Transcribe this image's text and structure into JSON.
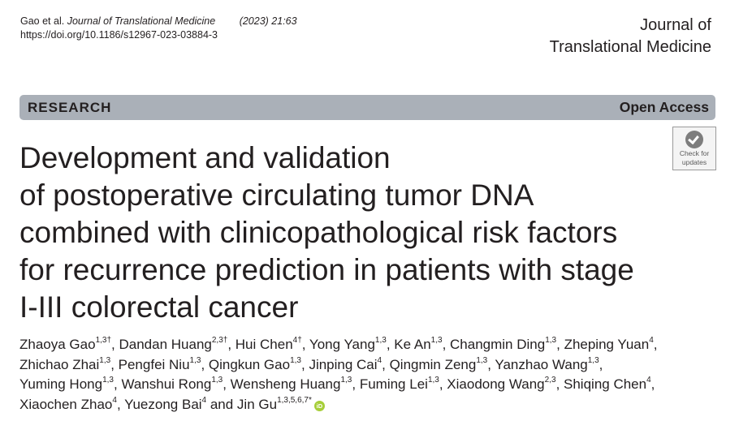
{
  "citation": {
    "authors": "Gao et al.",
    "journal": "Journal of Translational Medicine",
    "year_volume": "(2023) 21:63",
    "doi": "https://doi.org/10.1186/s12967-023-03884-3"
  },
  "journal_name": {
    "line1": "Journal of",
    "line2": "Translational Medicine"
  },
  "banner": {
    "article_type": "RESEARCH",
    "access": "Open Access"
  },
  "check_updates": {
    "line1": "Check for",
    "line2": "updates",
    "icon": "checkmark-icon"
  },
  "title_lines": [
    "Development and validation",
    "of postoperative circulating tumor DNA",
    "combined with clinicopathological risk factors",
    "for recurrence prediction in patients with stage",
    "I-III colorectal cancer"
  ],
  "authors": [
    {
      "name": "Zhaoya Gao",
      "aff": "1,3†",
      "sep": ", "
    },
    {
      "name": "Dandan Huang",
      "aff": "2,3†",
      "sep": ", "
    },
    {
      "name": "Hui Chen",
      "aff": "4†",
      "sep": ", "
    },
    {
      "name": "Yong Yang",
      "aff": "1,3",
      "sep": ", "
    },
    {
      "name": "Ke An",
      "aff": "1,3",
      "sep": ", "
    },
    {
      "name": "Changmin Ding",
      "aff": "1,3",
      "sep": ", "
    },
    {
      "name": "Zheping Yuan",
      "aff": "4",
      "sep": ", "
    },
    {
      "name": "Zhichao Zhai",
      "aff": "1,3",
      "sep": ", "
    },
    {
      "name": "Pengfei Niu",
      "aff": "1,3",
      "sep": ", "
    },
    {
      "name": "Qingkun Gao",
      "aff": "1,3",
      "sep": ", "
    },
    {
      "name": "Jinping Cai",
      "aff": "4",
      "sep": ", "
    },
    {
      "name": "Qingmin Zeng",
      "aff": "1,3",
      "sep": ", "
    },
    {
      "name": "Yanzhao Wang",
      "aff": "1,3",
      "sep": ", "
    },
    {
      "name": "Yuming Hong",
      "aff": "1,3",
      "sep": ", "
    },
    {
      "name": "Wanshui Rong",
      "aff": "1,3",
      "sep": ", "
    },
    {
      "name": "Wensheng Huang",
      "aff": "1,3",
      "sep": ", "
    },
    {
      "name": "Fuming Lei",
      "aff": "1,3",
      "sep": ", "
    },
    {
      "name": "Xiaodong Wang",
      "aff": "2,3",
      "sep": ", "
    },
    {
      "name": "Shiqing Chen",
      "aff": "4",
      "sep": ", "
    },
    {
      "name": "Xiaochen Zhao",
      "aff": "4",
      "sep": ", "
    },
    {
      "name": "Yuezong Bai",
      "aff": "4",
      "sep": " and "
    },
    {
      "name": "Jin Gu",
      "aff": "1,3,5,6,7*",
      "sep": ""
    }
  ],
  "orcid_label": "iD",
  "author_lines": [
    [
      0,
      1,
      2,
      3,
      4,
      5,
      6
    ],
    [
      7,
      8,
      9,
      10,
      11,
      12
    ],
    [
      13,
      14,
      15,
      16,
      17,
      18
    ],
    [
      19,
      20,
      21
    ]
  ]
}
